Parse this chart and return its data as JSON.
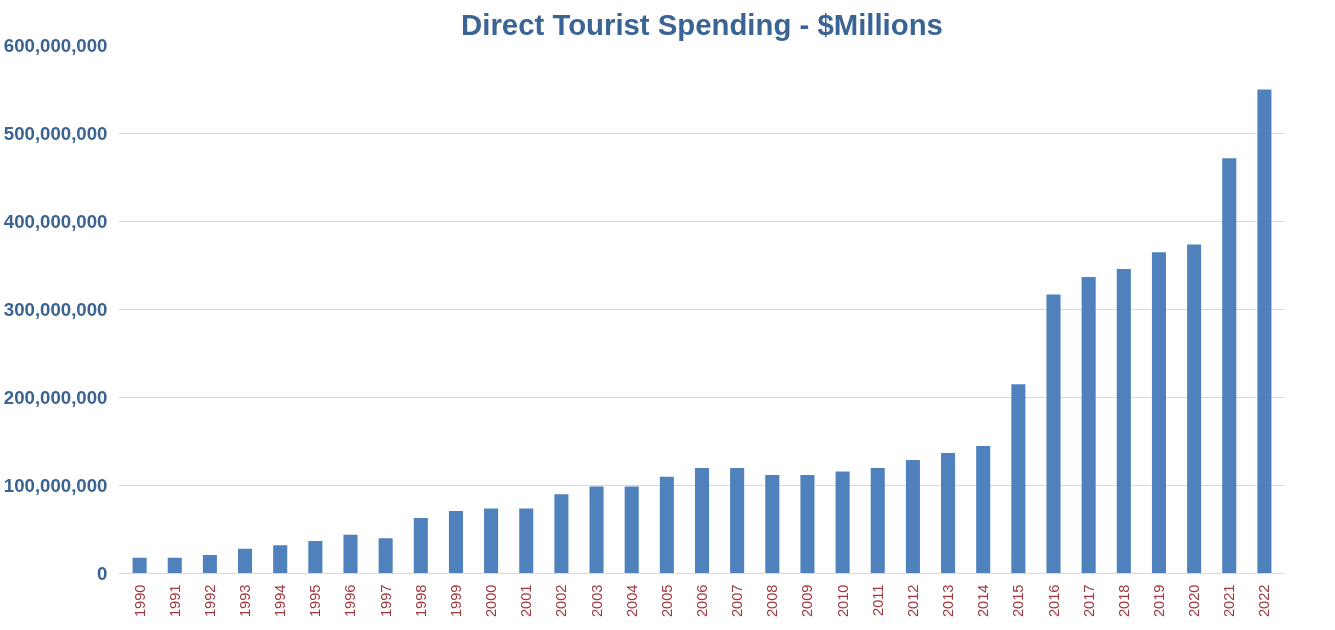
{
  "chart_data": {
    "type": "bar",
    "title": "Direct Tourist Spending - $Millions",
    "categories": [
      "1990",
      "1991",
      "1992",
      "1993",
      "1994",
      "1995",
      "1996",
      "1997",
      "1998",
      "1999",
      "2000",
      "2001",
      "2002",
      "2003",
      "2004",
      "2005",
      "2006",
      "2007",
      "2008",
      "2009",
      "2010",
      "2011",
      "2012",
      "2013",
      "2014",
      "2015",
      "2016",
      "2017",
      "2018",
      "2019",
      "2020",
      "2021",
      "2022"
    ],
    "values": [
      18000000,
      18000000,
      21000000,
      28000000,
      32000000,
      37000000,
      44000000,
      40000000,
      63000000,
      71000000,
      74000000,
      74000000,
      90000000,
      99000000,
      99000000,
      110000000,
      120000000,
      120000000,
      112000000,
      112000000,
      116000000,
      120000000,
      129000000,
      137000000,
      145000000,
      215000000,
      317000000,
      337000000,
      346000000,
      365000000,
      374000000,
      472000000,
      550000000
    ],
    "color": "#4f81bd",
    "ylim": [
      0,
      600000000
    ],
    "yticks": [
      {
        "value": 0,
        "label": "0"
      },
      {
        "value": 100000000,
        "label": "100,000,000"
      },
      {
        "value": 200000000,
        "label": "200,000,000"
      },
      {
        "value": 300000000,
        "label": "300,000,000"
      },
      {
        "value": 400000000,
        "label": "400,000,000"
      },
      {
        "value": 500000000,
        "label": "500,000,000"
      },
      {
        "value": 600000000,
        "label": "600,000,000"
      }
    ],
    "grid": "y"
  }
}
